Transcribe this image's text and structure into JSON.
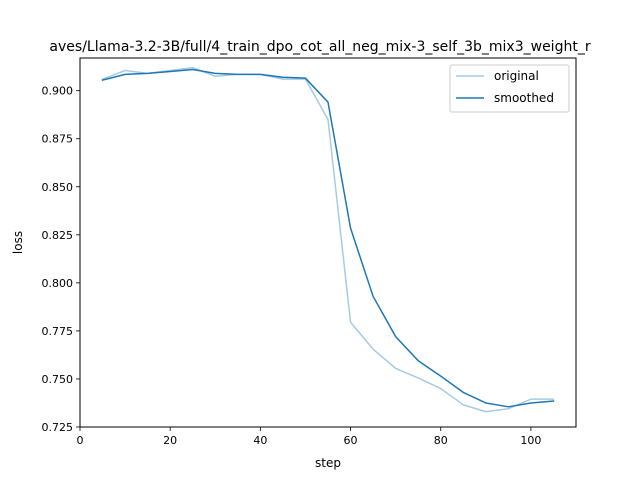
{
  "chart_data": {
    "type": "line",
    "title": "aves/Llama-3.2-3B/full/4_train_dpo_cot_all_neg_mix-3_self_3b_mix3_weight_r",
    "xlabel": "step",
    "ylabel": "loss",
    "xlim": [
      0,
      110
    ],
    "ylim": [
      0.725,
      0.917
    ],
    "xticks": [
      0,
      20,
      40,
      60,
      80,
      100
    ],
    "xtick_labels": [
      "0",
      "20",
      "40",
      "60",
      "80",
      "100"
    ],
    "yticks": [
      0.725,
      0.75,
      0.775,
      0.8,
      0.825,
      0.85,
      0.875,
      0.9
    ],
    "ytick_labels": [
      "0.725",
      "0.750",
      "0.775",
      "0.800",
      "0.825",
      "0.850",
      "0.875",
      "0.900"
    ],
    "grid": false,
    "legend_position": "top-right",
    "x": [
      5,
      10,
      15,
      20,
      25,
      30,
      35,
      40,
      45,
      50,
      55,
      60,
      65,
      70,
      75,
      80,
      85,
      90,
      95,
      100,
      105
    ],
    "series": [
      {
        "name": "original",
        "color": "#a6cbe3",
        "values": [
          0.906,
          0.9105,
          0.909,
          0.9105,
          0.912,
          0.9075,
          0.9085,
          0.9085,
          0.906,
          0.906,
          0.885,
          0.7795,
          0.7655,
          0.7555,
          0.7505,
          0.745,
          0.7365,
          0.733,
          0.7345,
          0.7395,
          0.7395
        ]
      },
      {
        "name": "smoothed",
        "color": "#1f77b4",
        "values": [
          0.9055,
          0.9085,
          0.909,
          0.91,
          0.911,
          0.909,
          0.9085,
          0.9085,
          0.907,
          0.9065,
          0.894,
          0.8285,
          0.793,
          0.772,
          0.7595,
          0.7515,
          0.743,
          0.7375,
          0.7355,
          0.7375,
          0.7385
        ]
      }
    ]
  }
}
